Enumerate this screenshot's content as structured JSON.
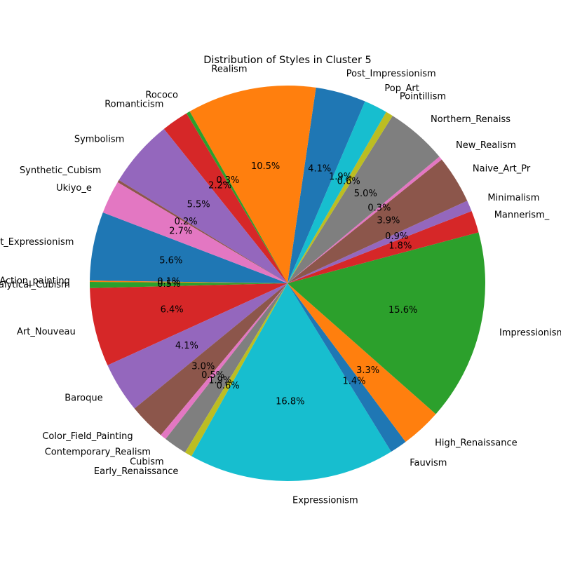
{
  "chart_data": {
    "type": "pie",
    "title": "Distribution of Styles in Cluster 5",
    "slices": [
      {
        "label": "Abstract_Expressionism",
        "value": 5.6,
        "pct_label": "5.6%",
        "color": "#1f77b4"
      },
      {
        "label": "Action_painting",
        "value": 0.1,
        "pct_label": "0.1%",
        "color": "#ff7f0e"
      },
      {
        "label": "Analytical_Cubism",
        "value": 0.5,
        "pct_label": "0.5%",
        "color": "#2ca02c"
      },
      {
        "label": "Art_Nouveau",
        "value": 6.4,
        "pct_label": "6.4%",
        "color": "#d62728"
      },
      {
        "label": "Baroque",
        "value": 4.1,
        "pct_label": "4.1%",
        "color": "#9467bd"
      },
      {
        "label": "Color_Field_Painting",
        "value": 3.0,
        "pct_label": "3.0%",
        "color": "#8c564b"
      },
      {
        "label": "Contemporary_Realism",
        "value": 0.5,
        "pct_label": "0.5%",
        "color": "#e377c2"
      },
      {
        "label": "Cubism",
        "value": 1.9,
        "pct_label": "1.9%",
        "color": "#7f7f7f"
      },
      {
        "label": "Early_Renaissance",
        "value": 0.6,
        "pct_label": "0.6%",
        "color": "#bcbd22"
      },
      {
        "label": "Expressionism",
        "value": 16.8,
        "pct_label": "16.8%",
        "color": "#17becf"
      },
      {
        "label": "Fauvism",
        "value": 1.4,
        "pct_label": "1.4%",
        "color": "#1f77b4"
      },
      {
        "label": "High_Renaissance",
        "value": 3.3,
        "pct_label": "3.3%",
        "color": "#ff7f0e"
      },
      {
        "label": "Impressionism",
        "value": 15.6,
        "pct_label": "15.6%",
        "color": "#2ca02c"
      },
      {
        "label": "Mannerism_",
        "value": 1.8,
        "pct_label": "1.8%",
        "color": "#d62728"
      },
      {
        "label": "Minimalism",
        "value": 0.9,
        "pct_label": "0.9%",
        "color": "#9467bd"
      },
      {
        "label": "Naive_Art_Pr",
        "value": 3.9,
        "pct_label": "3.9%",
        "color": "#8c564b"
      },
      {
        "label": "New_Realism",
        "value": 0.3,
        "pct_label": "0.3%",
        "color": "#e377c2"
      },
      {
        "label": "Northern_Renaiss",
        "value": 5.0,
        "pct_label": "5.0%",
        "color": "#7f7f7f"
      },
      {
        "label": "Pointillism",
        "value": 0.6,
        "pct_label": "0.6%",
        "color": "#bcbd22"
      },
      {
        "label": "Pop_Art",
        "value": 1.9,
        "pct_label": "1.9%",
        "color": "#17becf"
      },
      {
        "label": "Post_Impressionism",
        "value": 4.1,
        "pct_label": "4.1%",
        "color": "#1f77b4"
      },
      {
        "label": "Realism",
        "value": 10.5,
        "pct_label": "10.5%",
        "color": "#ff7f0e"
      },
      {
        "label": "Rococo",
        "value": 0.3,
        "pct_label": "0.3%",
        "color": "#2ca02c"
      },
      {
        "label": "Romanticism",
        "value": 2.2,
        "pct_label": "2.2%",
        "color": "#d62728"
      },
      {
        "label": "Symbolism",
        "value": 5.5,
        "pct_label": "5.5%",
        "color": "#9467bd"
      },
      {
        "label": "Synthetic_Cubism",
        "value": 0.2,
        "pct_label": "0.2%",
        "color": "#8c564b"
      },
      {
        "label": "Ukiyo_e",
        "value": 2.7,
        "pct_label": "2.7%",
        "color": "#e377c2"
      }
    ],
    "start_angle_deg": 159,
    "direction": "counterclockwise",
    "legend": "none"
  }
}
